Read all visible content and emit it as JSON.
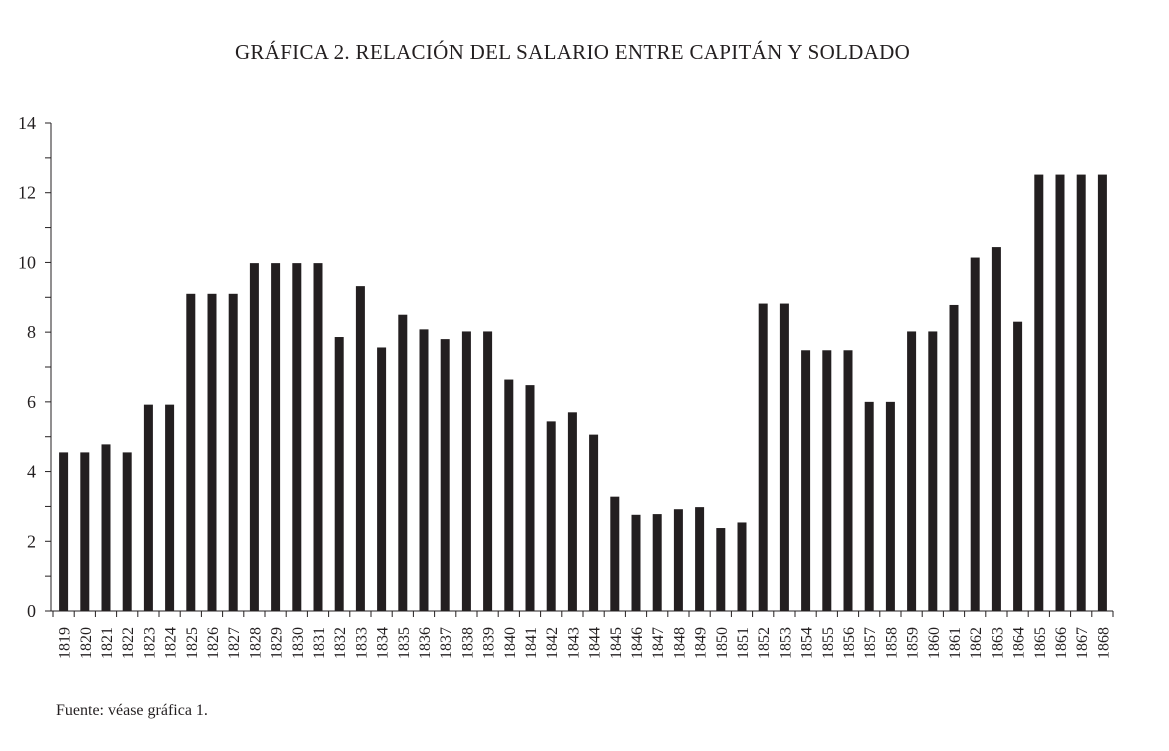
{
  "chart_data": {
    "type": "bar",
    "title": "GRÁFICA 2. RELACIÓN DEL SALARIO ENTRE CAPITÁN Y SOLDADO",
    "xlabel": "",
    "ylabel": "",
    "ylim": [
      0,
      14
    ],
    "yticks": [
      0,
      2,
      4,
      6,
      8,
      10,
      12,
      14
    ],
    "grid": false,
    "bar_color": "#231f20",
    "categories": [
      "1819",
      "1820",
      "1821",
      "1822",
      "1823",
      "1824",
      "1825",
      "1826",
      "1827",
      "1828",
      "1829",
      "1830",
      "1831",
      "1832",
      "1833",
      "1834",
      "1835",
      "1836",
      "1837",
      "1838",
      "1839",
      "1840",
      "1841",
      "1842",
      "1843",
      "1844",
      "1845",
      "1846",
      "1847",
      "1848",
      "1849",
      "1850",
      "1851",
      "1852",
      "1853",
      "1854",
      "1855",
      "1856",
      "1857",
      "1858",
      "1859",
      "1860",
      "1861",
      "1862",
      "1863",
      "1864",
      "1865",
      "1866",
      "1867",
      "1868"
    ],
    "values": [
      4.55,
      4.55,
      4.78,
      4.55,
      5.92,
      5.92,
      9.1,
      9.1,
      9.1,
      9.98,
      9.98,
      9.98,
      9.98,
      7.86,
      9.32,
      7.56,
      8.5,
      8.08,
      7.8,
      8.02,
      8.02,
      6.64,
      6.48,
      5.44,
      5.7,
      5.06,
      3.28,
      2.76,
      2.78,
      2.92,
      2.98,
      2.38,
      2.54,
      8.82,
      8.82,
      7.48,
      7.48,
      7.48,
      6.0,
      6.0,
      8.02,
      8.02,
      8.78,
      10.14,
      10.44,
      8.3,
      12.52,
      12.52,
      12.52,
      12.52
    ],
    "source": "Fuente: véase gráfica 1."
  }
}
